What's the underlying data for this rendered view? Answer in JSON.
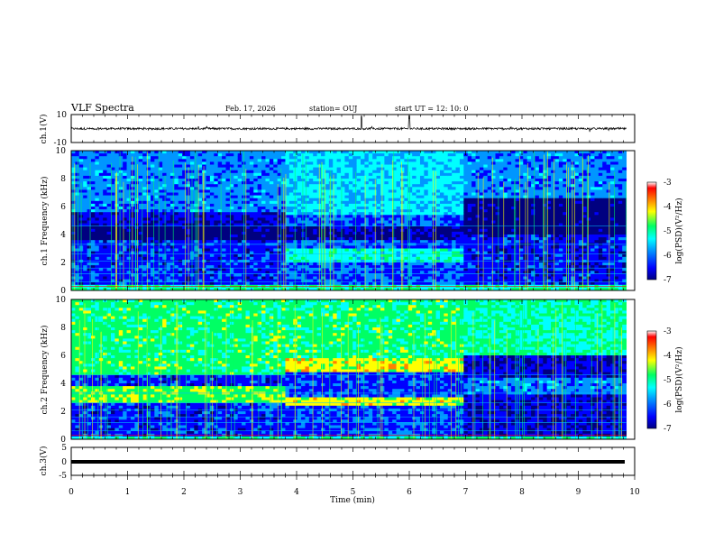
{
  "header": {
    "title": "VLF Spectra",
    "date": "Feb. 17, 2026",
    "station": "station= OUJ",
    "start": "start  UT =   12: 10: 0"
  },
  "colors": {
    "spectrogram_scale": [
      "#000080",
      "#0000ff",
      "#0096ff",
      "#00ffff",
      "#00ff64",
      "#ffff00",
      "#ff8000",
      "#ff0000",
      "#ffffff"
    ]
  },
  "chart_data": [
    {
      "type": "line",
      "name": "ch1-waveform",
      "ylabel": "ch.1(V)",
      "ylim": [
        -10,
        10
      ],
      "yticks": [
        "10",
        "-10"
      ],
      "x_range_min": [
        0,
        10
      ],
      "description_values": {
        "mean": -0.1,
        "amplitude": 1.5,
        "spikes_at_min": [
          5.15,
          6.0
        ]
      }
    },
    {
      "type": "heatmap",
      "name": "ch1-spectrogram",
      "ylabel": "ch.1\nFrequency (kHz)",
      "ylim_khz": [
        0,
        10
      ],
      "yticks": [
        "0",
        "2",
        "4",
        "6",
        "8",
        "10"
      ],
      "segments_min": [
        0,
        3.8,
        6.95,
        9.85
      ],
      "colorbar": {
        "label": "log(PSD)(V²/Hz)",
        "ticks": [
          "-3",
          "-4",
          "-5",
          "-6",
          "-7"
        ],
        "range": [
          -7,
          -3
        ]
      }
    },
    {
      "type": "heatmap",
      "name": "ch2-spectrogram",
      "ylabel": "ch.2\nFrequency (kHz)",
      "ylim_khz": [
        0,
        10
      ],
      "yticks": [
        "0",
        "2",
        "4",
        "6",
        "8",
        "10"
      ],
      "segments_min": [
        0,
        3.8,
        6.95,
        9.85
      ],
      "colorbar": {
        "label": "log(PSD)(V²/Hz)",
        "ticks": [
          "-3",
          "-4",
          "-5",
          "-6",
          "-7"
        ],
        "range": [
          -7,
          -3
        ]
      }
    },
    {
      "type": "line",
      "name": "ch3-waveform",
      "ylabel": "ch.3(V)",
      "ylim": [
        -5,
        5
      ],
      "yticks": [
        "5",
        "0",
        "-5"
      ],
      "x_range_min": [
        0,
        10
      ],
      "description_values": {
        "mean": -1.0
      }
    }
  ],
  "xaxis": {
    "label": "Time  (min)",
    "ticks": [
      "0",
      "1",
      "2",
      "3",
      "4",
      "5",
      "6",
      "7",
      "8",
      "9",
      "10"
    ],
    "range": [
      0,
      10
    ]
  }
}
